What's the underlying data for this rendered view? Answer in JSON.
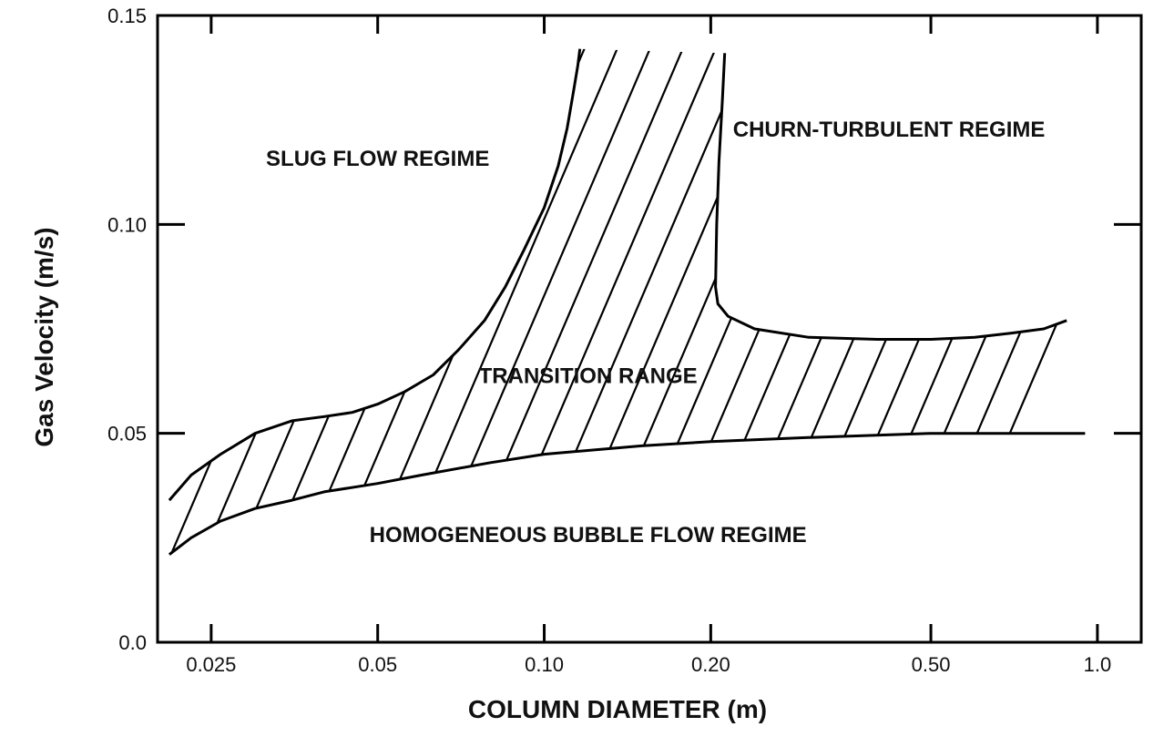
{
  "chart_data": {
    "type": "area",
    "xlabel": "COLUMN DIAMETER (m)",
    "ylabel": "Gas Velocity (m/s)",
    "x_scale": "log",
    "xlim": [
      0.02,
      1.2
    ],
    "ylim": [
      0.0,
      0.15
    ],
    "x_ticks": [
      0.025,
      0.05,
      0.1,
      0.2,
      0.5,
      1.0
    ],
    "x_tick_labels": [
      "0.025",
      "0.05",
      "0.10",
      "0.20",
      "0.50",
      "1.0"
    ],
    "y_ticks": [
      0.0,
      0.05,
      0.1,
      0.15
    ],
    "y_tick_labels": [
      "0.0",
      "0.05",
      "0.10",
      "0.15"
    ],
    "grid": false,
    "regions": [
      {
        "name": "SLUG FLOW REGIME",
        "x": 0.05,
        "y": 0.114
      },
      {
        "name": "CHURN-TURBULENT REGIME",
        "x": 0.42,
        "y": 0.121
      },
      {
        "name": "TRANSITION RANGE",
        "x": 0.12,
        "y": 0.062
      },
      {
        "name": "HOMOGENEOUS  BUBBLE FLOW REGIME",
        "x": 0.12,
        "y": 0.024
      }
    ],
    "series": [
      {
        "role": "transition-upper-boundary",
        "x": [
          0.021,
          0.023,
          0.026,
          0.03,
          0.035,
          0.04,
          0.045,
          0.05,
          0.056,
          0.063,
          0.07,
          0.078,
          0.085,
          0.092,
          0.1,
          0.106,
          0.11,
          0.113,
          0.115,
          0.116
        ],
        "y": [
          0.034,
          0.04,
          0.045,
          0.05,
          0.053,
          0.054,
          0.055,
          0.057,
          0.06,
          0.064,
          0.07,
          0.077,
          0.085,
          0.094,
          0.104,
          0.114,
          0.123,
          0.132,
          0.138,
          0.142
        ]
      },
      {
        "role": "transition-right-boundary",
        "x": [
          0.212,
          0.21,
          0.207,
          0.205,
          0.204,
          0.206,
          0.215,
          0.24,
          0.3,
          0.4,
          0.5,
          0.6,
          0.7,
          0.8,
          0.88
        ],
        "y": [
          0.141,
          0.13,
          0.115,
          0.1,
          0.085,
          0.081,
          0.078,
          0.075,
          0.073,
          0.0725,
          0.0725,
          0.073,
          0.074,
          0.075,
          0.077
        ]
      },
      {
        "role": "transition-lower-boundary",
        "x": [
          0.021,
          0.023,
          0.026,
          0.03,
          0.035,
          0.04,
          0.05,
          0.06,
          0.08,
          0.1,
          0.15,
          0.2,
          0.3,
          0.5,
          0.7,
          0.95
        ],
        "y": [
          0.021,
          0.025,
          0.029,
          0.032,
          0.034,
          0.036,
          0.038,
          0.04,
          0.043,
          0.045,
          0.047,
          0.048,
          0.049,
          0.05,
          0.05,
          0.05
        ]
      }
    ]
  }
}
